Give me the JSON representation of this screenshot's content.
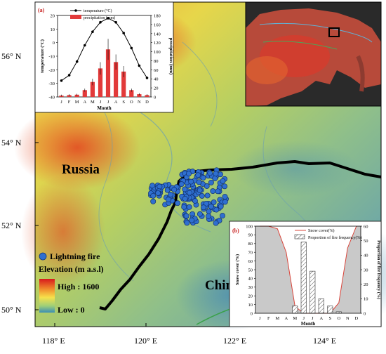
{
  "map": {
    "lat_labels": [
      "56° N",
      "54° N",
      "52° N",
      "50° N"
    ],
    "lon_labels": [
      "118° E",
      "120° E",
      "122° E",
      "124° E"
    ],
    "regions": {
      "north": "Russia",
      "south": "China"
    },
    "legend": {
      "point_label": "Lightning fire",
      "elevation_title": "Elevation (m a.s.l)",
      "high": "High : 1600",
      "low": "Low : 0"
    },
    "colors": {
      "fire": "#2f6fd0",
      "border": "#000000"
    }
  },
  "chart_data": [
    {
      "type": "bar",
      "panel_label": "(a)",
      "categories": [
        "J",
        "F",
        "M",
        "A",
        "M",
        "J",
        "J",
        "A",
        "S",
        "O",
        "N",
        "D"
      ],
      "xlabel": "Month",
      "series": [
        {
          "name": "temperature (°C)",
          "type": "line",
          "axis": "left",
          "values": [
            -28,
            -24,
            -14,
            -2,
            8,
            15,
            18,
            15,
            7,
            -4,
            -17,
            -26
          ]
        },
        {
          "name": "precipitation (mm)",
          "type": "bar",
          "axis": "right",
          "values": [
            3,
            4,
            5,
            15,
            33,
            63,
            105,
            77,
            56,
            15,
            6,
            4
          ]
        }
      ],
      "ylabel_left": "temperature (°C)",
      "ylabel_right": "precipitation (mm)",
      "ylim_left": [
        -40,
        20
      ],
      "ylim_right": [
        0,
        180
      ],
      "yticks_left": [
        "20",
        "10",
        "0",
        "-10",
        "-20",
        "-30",
        "-40"
      ],
      "yticks_right": [
        "180",
        "160",
        "140",
        "120",
        "100",
        "80",
        "60",
        "40",
        "20",
        "0"
      ]
    },
    {
      "type": "area",
      "panel_label": "(b)",
      "categories": [
        "J",
        "F",
        "M",
        "A",
        "M",
        "J",
        "J",
        "A",
        "S",
        "O",
        "N",
        "D"
      ],
      "xlabel": "Month",
      "series": [
        {
          "name": "Snow cover(%)",
          "type": "area",
          "axis": "left",
          "values": [
            100,
            100,
            97,
            70,
            8,
            0,
            0,
            0,
            0,
            12,
            75,
            100
          ]
        },
        {
          "name": "Proportion of fire frequency(%)",
          "type": "bar",
          "axis": "right",
          "values": [
            0,
            0,
            0,
            0,
            5,
            49,
            29,
            10,
            5,
            1,
            0,
            0
          ]
        }
      ],
      "ylabel_left": "Snow cover (%)",
      "ylabel_right": "Proportion of fire frequency (%)",
      "ylim_left": [
        0,
        100
      ],
      "ylim_right": [
        0,
        60
      ],
      "yticks_left": [
        "100",
        "90",
        "80",
        "70",
        "60",
        "50",
        "40",
        "30",
        "20",
        "10",
        "0"
      ],
      "yticks_right": [
        "60",
        "50",
        "40",
        "30",
        "20",
        "10",
        "0"
      ]
    }
  ]
}
